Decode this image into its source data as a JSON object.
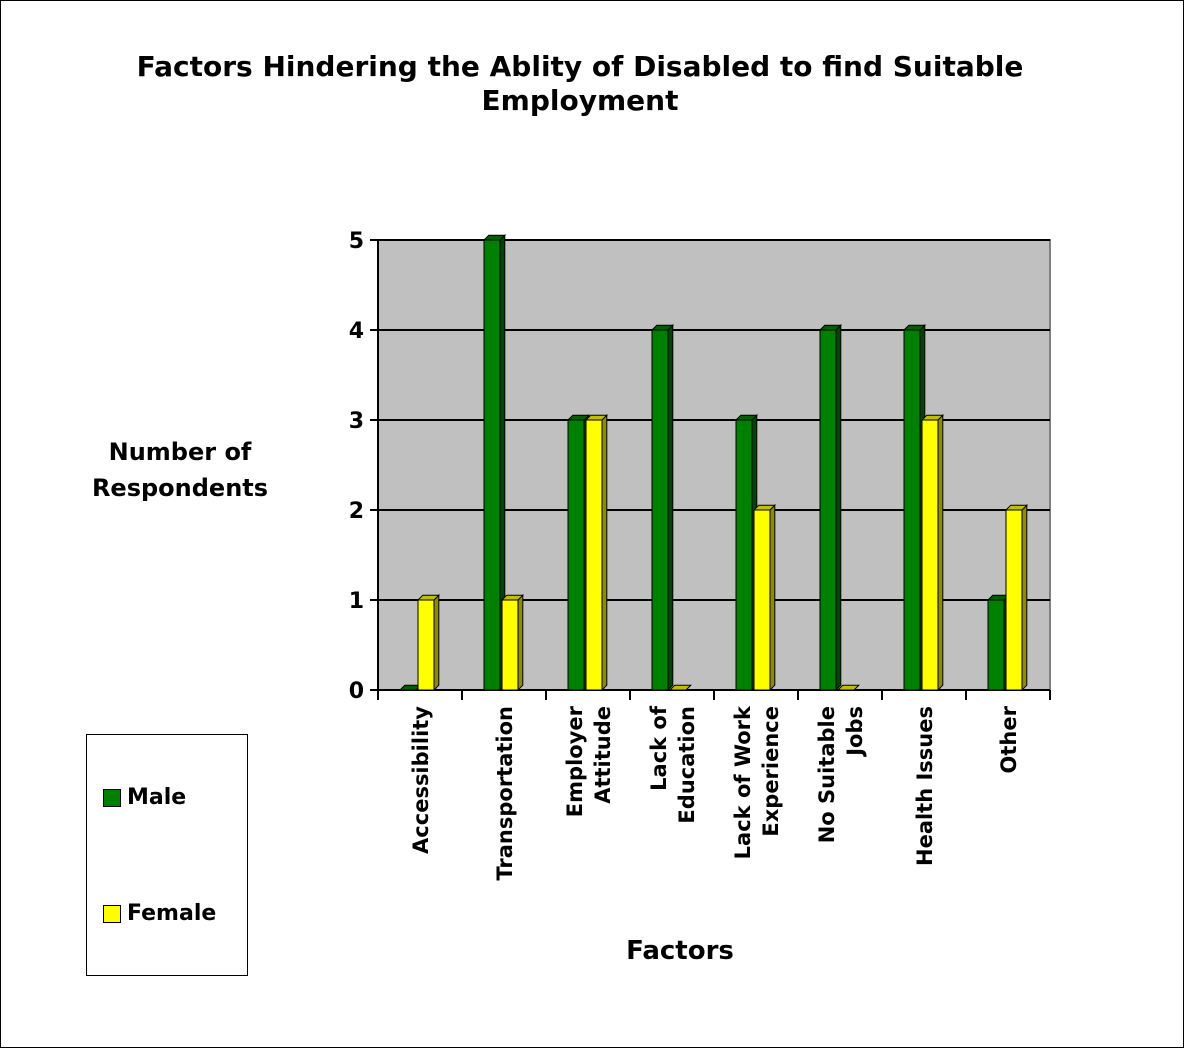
{
  "chart_data": {
    "type": "bar",
    "title": "Factors Hindering the Ablity of Disabled to find Suitable Employment",
    "xlabel": "Factors",
    "ylabel": "Number of Respondents",
    "categories": [
      [
        "Accessibility"
      ],
      [
        "Transportation"
      ],
      [
        "Employer",
        "Attitude"
      ],
      [
        "Lack of",
        "Education"
      ],
      [
        "Lack of Work",
        "Experience"
      ],
      [
        "No Suitable",
        "Jobs"
      ],
      [
        "Health Issues"
      ],
      [
        "Other"
      ]
    ],
    "series": [
      {
        "name": "Male",
        "color": "#008000",
        "values": [
          0,
          5,
          3,
          4,
          3,
          4,
          4,
          1
        ]
      },
      {
        "name": "Female",
        "color": "#ffff00",
        "values": [
          1,
          1,
          3,
          0,
          2,
          0,
          3,
          2
        ]
      }
    ],
    "ylim": [
      0,
      5
    ],
    "yticks": [
      0,
      1,
      2,
      3,
      4,
      5
    ],
    "grid": true,
    "legend_position": "bottom-left",
    "plot_background": "#c0c0c0"
  }
}
